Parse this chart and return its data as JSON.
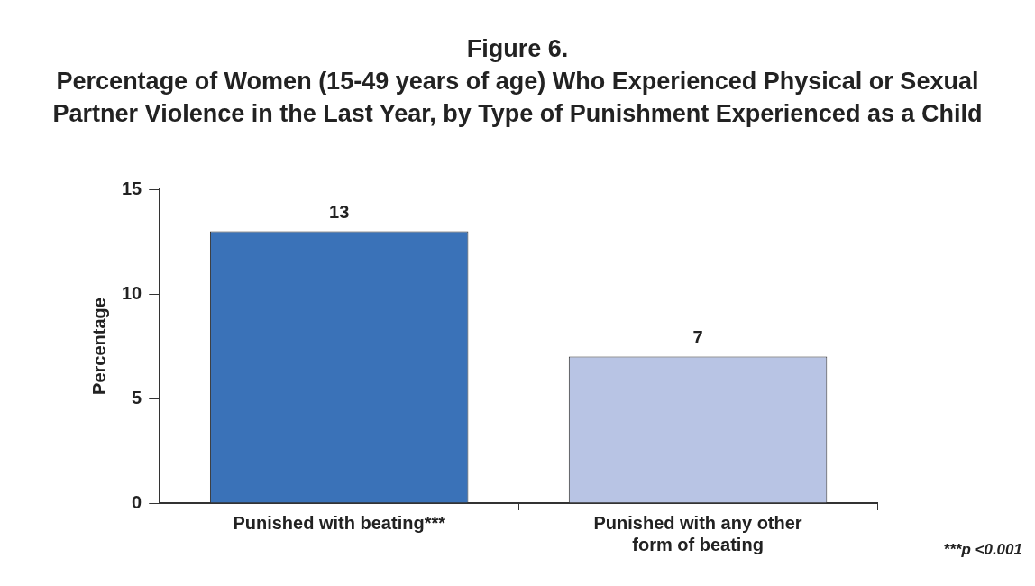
{
  "chart_data": {
    "type": "bar",
    "title": "Figure 6.",
    "subtitle": "Percentage of Women (15-49 years of age) Who Experienced Physical or Sexual Partner Violence in the Last Year, by Type of Punishment Experienced as a Child",
    "ylabel": "Percentage",
    "categories": [
      "Punished with beating***",
      "Punished with any other form of beating"
    ],
    "values": [
      13,
      7
    ],
    "colors": [
      "#3a72b8",
      "#b8c4e4"
    ],
    "ylim": [
      0,
      15
    ],
    "yticks": [
      0,
      5,
      10,
      15
    ],
    "grid": false,
    "legend": false,
    "data_labels": true,
    "annotations": [
      "***p <0.001"
    ]
  }
}
